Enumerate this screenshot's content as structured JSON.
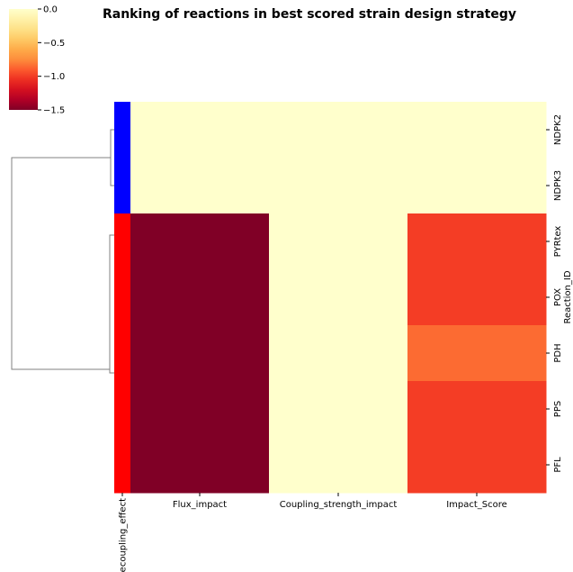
{
  "chart_data": {
    "type": "heatmap",
    "title": "Ranking of reactions in best scored strain design strategy",
    "rows": [
      "NDPK2",
      "NDPK3",
      "PYRtex",
      "POX",
      "PDH",
      "PPS",
      "PFL"
    ],
    "row_label": "Reaction_ID",
    "columns": [
      "Flux_impact",
      "Coupling_strength_impact",
      "Impact_Score"
    ],
    "values": [
      [
        0.0,
        0.0,
        0.0
      ],
      [
        0.0,
        0.0,
        0.0
      ],
      [
        -1.5,
        0.0,
        -1.0
      ],
      [
        -1.5,
        0.0,
        -1.0
      ],
      [
        -1.5,
        0.0,
        -0.85
      ],
      [
        -1.5,
        0.0,
        -1.0
      ],
      [
        -1.5,
        0.0,
        -1.0
      ]
    ],
    "row_colors_label": "Decoupling_effect",
    "row_colors": [
      "#0000ff",
      "#0000ff",
      "#ff0000",
      "#ff0000",
      "#ff0000",
      "#ff0000",
      "#ff0000"
    ],
    "colorbar": {
      "colormap": "YlOrRd_r",
      "range": [
        -1.5,
        0.0
      ],
      "ticks": [
        {
          "value": 0.0,
          "label": "0.0"
        },
        {
          "value": -0.5,
          "label": "−0.5"
        },
        {
          "value": -1.0,
          "label": "−1.0"
        },
        {
          "value": -1.5,
          "label": "−1.5"
        }
      ]
    },
    "dendrogram": "rows",
    "grid": false
  }
}
